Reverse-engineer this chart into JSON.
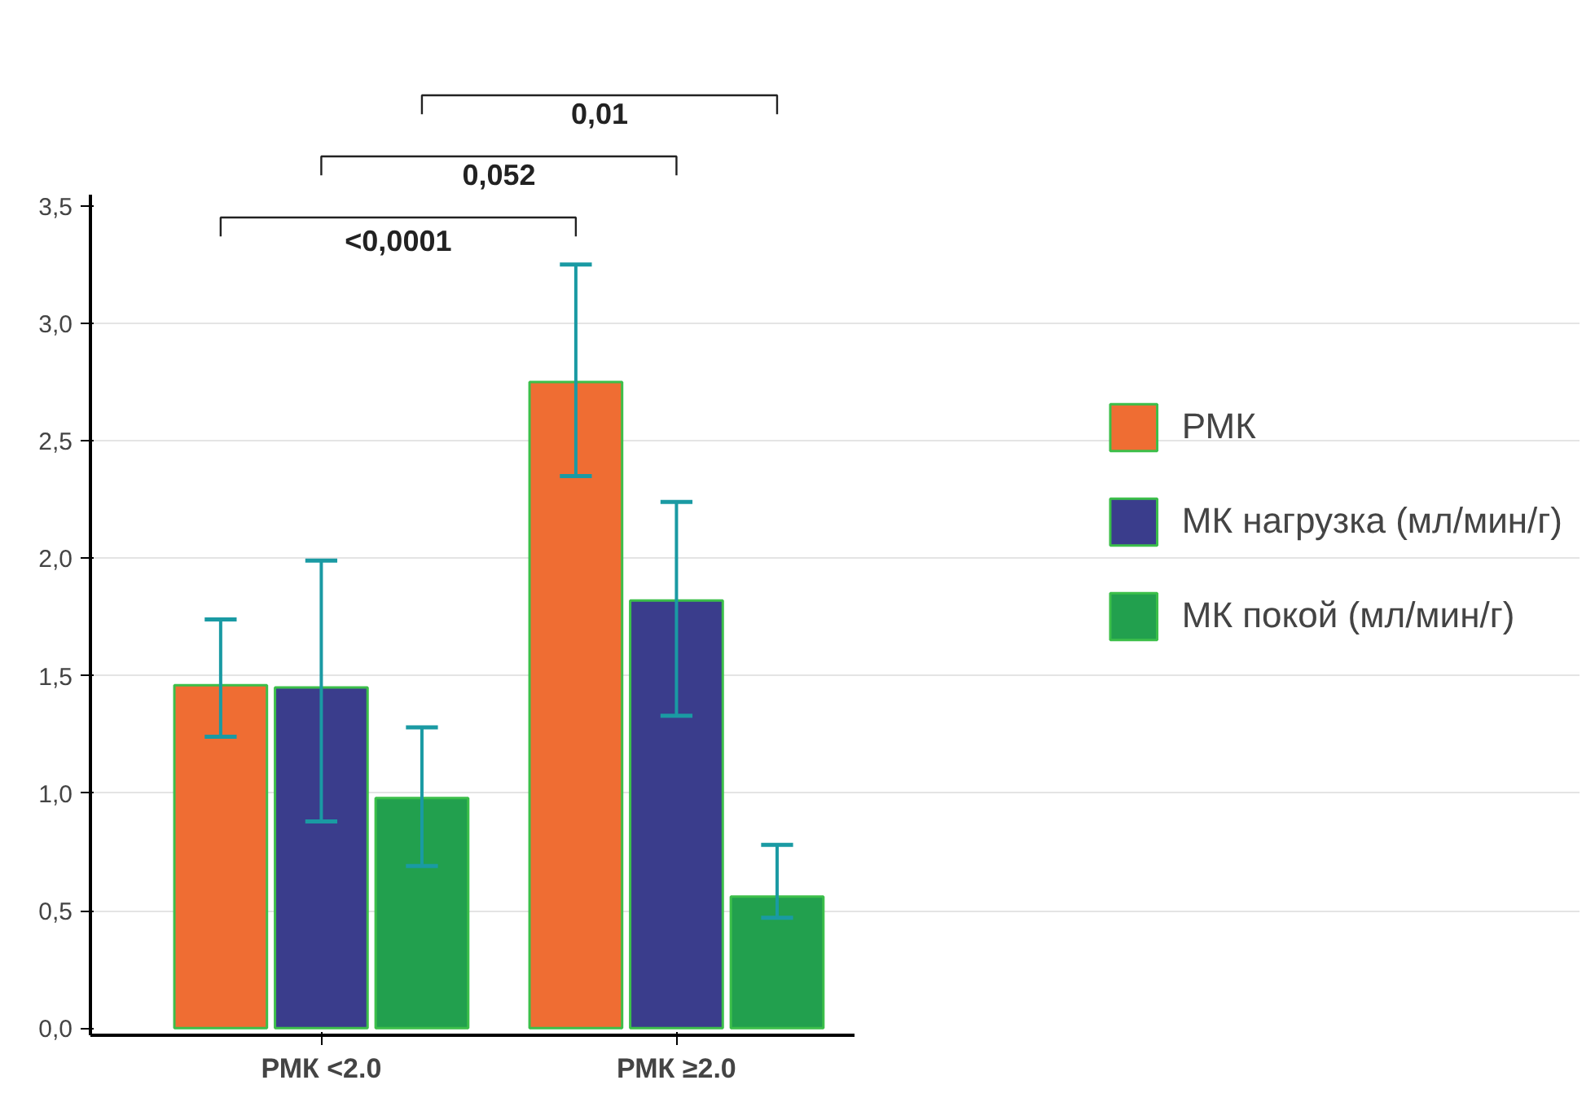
{
  "chart_data": {
    "type": "bar",
    "categories": [
      "РМК <2.0",
      "РМК ≥2.0"
    ],
    "series": [
      {
        "name": "РМК",
        "color": "#ef6d33",
        "values": [
          1.46,
          2.75
        ],
        "errors": [
          [
            1.24,
            1.74
          ],
          [
            2.35,
            3.25
          ]
        ]
      },
      {
        "name": "МК нагрузка (мл/мин/г)",
        "color": "#3a3d8c",
        "values": [
          1.45,
          1.82
        ],
        "errors": [
          [
            0.88,
            1.99
          ],
          [
            1.33,
            2.24
          ]
        ]
      },
      {
        "name": "МК покой (мл/мин/г)",
        "color": "#22a04e",
        "values": [
          0.98,
          0.56
        ],
        "errors": [
          [
            0.69,
            1.28
          ],
          [
            0.47,
            0.78
          ]
        ]
      }
    ],
    "ylim": [
      -0.03,
      3.55
    ],
    "yticks": [
      {
        "value": 0,
        "label": "0,0"
      },
      {
        "value": 0.5,
        "label": "0,5"
      },
      {
        "value": 1,
        "label": "1,0"
      },
      {
        "value": 1.5,
        "label": "1,5"
      },
      {
        "value": 2,
        "label": "2,0"
      },
      {
        "value": 2.5,
        "label": "2,5"
      },
      {
        "value": 3,
        "label": "3,0"
      },
      {
        "value": 3.5,
        "label": "3,5"
      }
    ],
    "grid": "y",
    "legend": "right",
    "annotations": [
      "<0,0001",
      "0,052",
      "0,01"
    ]
  }
}
